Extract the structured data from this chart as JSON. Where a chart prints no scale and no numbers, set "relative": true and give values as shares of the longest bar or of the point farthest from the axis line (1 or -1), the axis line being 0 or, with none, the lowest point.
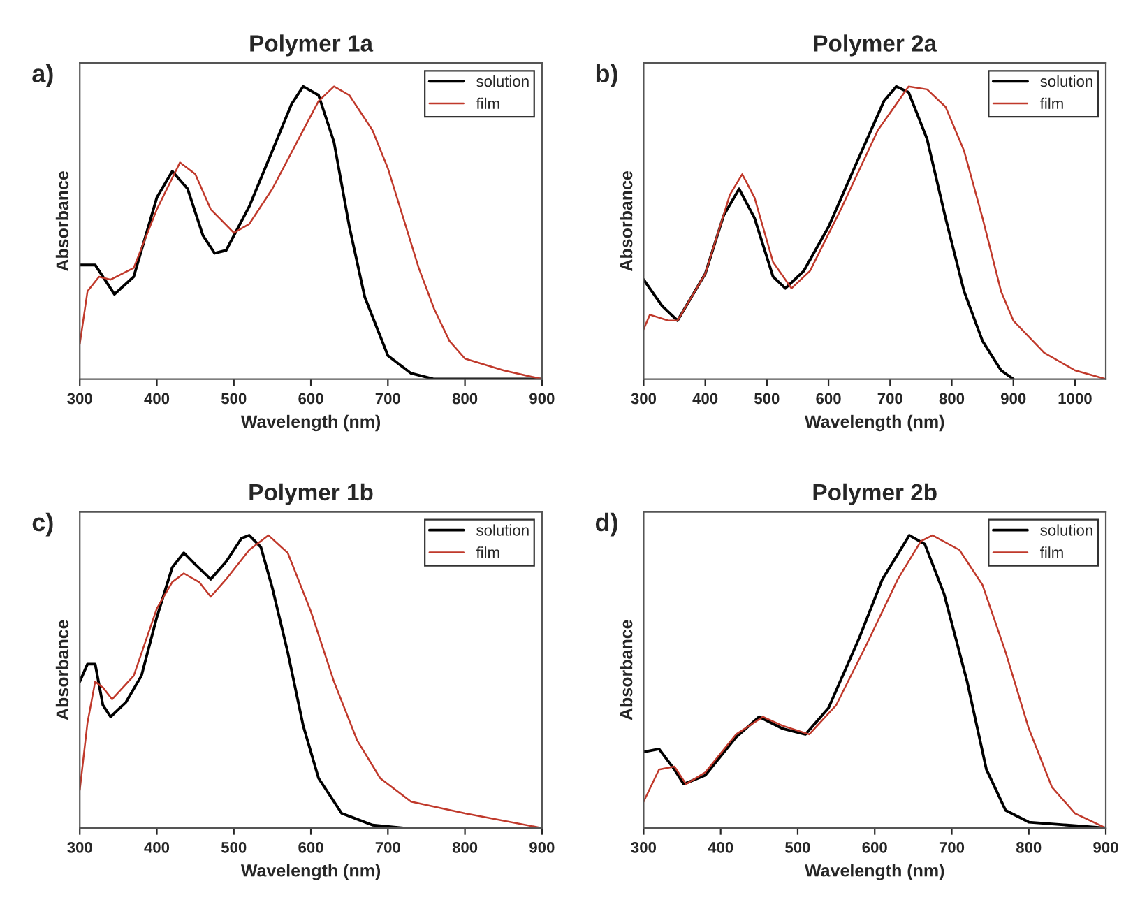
{
  "chart_data": [
    {
      "type": "line",
      "title": "Polymer 1a",
      "xlabel": "Wavelength (nm)",
      "ylabel": "Absorbance",
      "annotations": [
        "a)"
      ],
      "relative": true,
      "xlim": [
        300,
        900
      ],
      "xticks": [
        300,
        400,
        500,
        600,
        700,
        800,
        900
      ],
      "legend": "top right",
      "grid": false,
      "tick_labels": "x",
      "series": [
        {
          "name": "solution",
          "color": "#000000",
          "x": [
            300,
            320,
            345,
            370,
            400,
            420,
            440,
            460,
            475,
            490,
            520,
            550,
            575,
            590,
            610,
            630,
            650,
            670,
            700,
            730,
            760,
            900
          ],
          "values": [
            0.39,
            0.39,
            0.29,
            0.35,
            0.62,
            0.71,
            0.65,
            0.49,
            0.43,
            0.44,
            0.59,
            0.78,
            0.94,
            1.0,
            0.97,
            0.81,
            0.52,
            0.28,
            0.08,
            0.02,
            0,
            0
          ]
        },
        {
          "name": "film",
          "color": "#c0392b",
          "x": [
            300,
            310,
            325,
            340,
            370,
            400,
            430,
            450,
            470,
            500,
            520,
            550,
            580,
            610,
            630,
            650,
            680,
            700,
            720,
            740,
            760,
            780,
            800,
            850,
            900
          ],
          "values": [
            0.12,
            0.3,
            0.35,
            0.34,
            0.38,
            0.58,
            0.74,
            0.7,
            0.58,
            0.5,
            0.53,
            0.65,
            0.8,
            0.95,
            1.0,
            0.97,
            0.85,
            0.72,
            0.55,
            0.38,
            0.24,
            0.13,
            0.07,
            0.03,
            0
          ]
        }
      ]
    },
    {
      "type": "line",
      "title": "Polymer 2a",
      "xlabel": "Wavelength (nm)",
      "ylabel": "Absorbance",
      "annotations": [
        "b)"
      ],
      "relative": true,
      "xlim": [
        300,
        1050
      ],
      "xticks": [
        300,
        400,
        500,
        600,
        700,
        800,
        900,
        1000
      ],
      "legend": "top right",
      "grid": false,
      "tick_labels": "x",
      "series": [
        {
          "name": "solution",
          "color": "#000000",
          "x": [
            300,
            330,
            355,
            400,
            430,
            455,
            480,
            510,
            530,
            560,
            600,
            650,
            690,
            710,
            730,
            760,
            790,
            820,
            850,
            880,
            900
          ],
          "values": [
            0.34,
            0.25,
            0.2,
            0.36,
            0.56,
            0.65,
            0.55,
            0.35,
            0.31,
            0.37,
            0.52,
            0.76,
            0.95,
            1.0,
            0.98,
            0.82,
            0.55,
            0.3,
            0.13,
            0.03,
            0
          ]
        },
        {
          "name": "film",
          "color": "#c0392b",
          "x": [
            300,
            310,
            340,
            355,
            400,
            440,
            460,
            480,
            510,
            540,
            570,
            620,
            680,
            730,
            760,
            790,
            820,
            850,
            880,
            900,
            950,
            1000,
            1050
          ],
          "values": [
            0.17,
            0.22,
            0.2,
            0.2,
            0.36,
            0.63,
            0.7,
            0.62,
            0.4,
            0.31,
            0.37,
            0.58,
            0.85,
            1.0,
            0.99,
            0.93,
            0.78,
            0.55,
            0.3,
            0.2,
            0.09,
            0.03,
            0
          ]
        }
      ]
    },
    {
      "type": "line",
      "title": "Polymer 1b",
      "xlabel": "Wavelength (nm)",
      "ylabel": "Absorbance",
      "annotations": [
        "c)"
      ],
      "relative": true,
      "xlim": [
        300,
        900
      ],
      "xticks": [
        300,
        400,
        500,
        600,
        700,
        800,
        900
      ],
      "legend": "top right",
      "grid": false,
      "tick_labels": "x",
      "series": [
        {
          "name": "solution",
          "color": "#000000",
          "x": [
            300,
            310,
            320,
            330,
            340,
            360,
            380,
            400,
            420,
            435,
            450,
            470,
            490,
            510,
            520,
            535,
            550,
            570,
            590,
            610,
            640,
            680,
            720,
            900
          ],
          "values": [
            0.5,
            0.56,
            0.56,
            0.42,
            0.38,
            0.43,
            0.52,
            0.72,
            0.89,
            0.94,
            0.9,
            0.85,
            0.91,
            0.99,
            1.0,
            0.96,
            0.82,
            0.6,
            0.35,
            0.17,
            0.05,
            0.01,
            0,
            0
          ]
        },
        {
          "name": "film",
          "color": "#c0392b",
          "x": [
            300,
            310,
            320,
            330,
            342,
            370,
            400,
            420,
            435,
            455,
            470,
            490,
            520,
            545,
            570,
            600,
            630,
            660,
            690,
            730,
            800,
            900
          ],
          "values": [
            0.13,
            0.36,
            0.5,
            0.48,
            0.44,
            0.52,
            0.75,
            0.84,
            0.87,
            0.84,
            0.79,
            0.85,
            0.95,
            1.0,
            0.94,
            0.74,
            0.5,
            0.3,
            0.17,
            0.09,
            0.05,
            0
          ]
        }
      ]
    },
    {
      "type": "line",
      "title": "Polymer 2b",
      "xlabel": "Wavelength (nm)",
      "ylabel": "Absorbance",
      "annotations": [
        "d)"
      ],
      "relative": true,
      "xlim": [
        300,
        900
      ],
      "xticks": [
        300,
        400,
        500,
        600,
        700,
        800,
        900
      ],
      "legend": "top right",
      "grid": false,
      "tick_labels": "x",
      "series": [
        {
          "name": "solution",
          "color": "#000000",
          "x": [
            300,
            320,
            340,
            352,
            380,
            420,
            450,
            480,
            510,
            540,
            580,
            610,
            645,
            665,
            690,
            720,
            745,
            770,
            800,
            900
          ],
          "values": [
            0.26,
            0.27,
            0.2,
            0.15,
            0.18,
            0.31,
            0.38,
            0.34,
            0.32,
            0.41,
            0.65,
            0.85,
            1.0,
            0.97,
            0.8,
            0.5,
            0.2,
            0.06,
            0.02,
            0
          ]
        },
        {
          "name": "film",
          "color": "#c0392b",
          "x": [
            300,
            320,
            340,
            355,
            380,
            420,
            455,
            480,
            515,
            550,
            590,
            630,
            660,
            675,
            710,
            740,
            770,
            800,
            830,
            860,
            900
          ],
          "values": [
            0.09,
            0.2,
            0.21,
            0.15,
            0.19,
            0.32,
            0.38,
            0.35,
            0.32,
            0.42,
            0.63,
            0.85,
            0.98,
            1.0,
            0.95,
            0.83,
            0.6,
            0.34,
            0.14,
            0.05,
            0
          ]
        }
      ]
    }
  ]
}
